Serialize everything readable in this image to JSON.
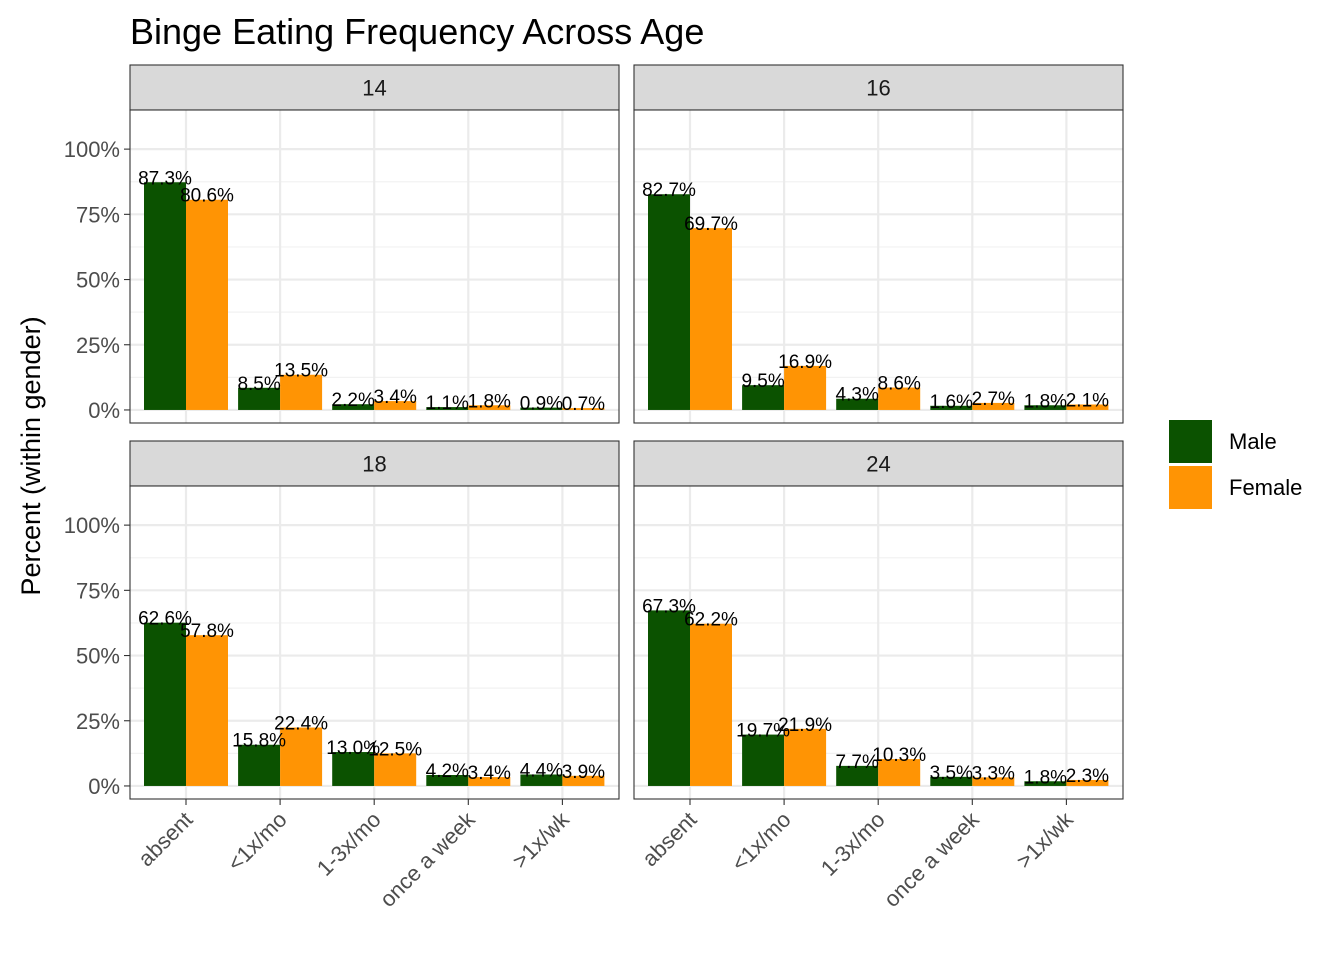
{
  "chart_data": {
    "type": "bar",
    "title": "Binge Eating Frequency Across Age",
    "xlabel": "",
    "ylabel": "Percent (within gender)",
    "ylim": [
      -0.05,
      1.15
    ],
    "y_ticks": [
      "0%",
      "25%",
      "50%",
      "75%",
      "100%"
    ],
    "y_tick_values": [
      0,
      0.25,
      0.5,
      0.75,
      1.0
    ],
    "categories": [
      "absent",
      "<1x/mo",
      "1-3x/mo",
      "once a week",
      ">1x/wk"
    ],
    "legend_position": "right",
    "grid": true,
    "series_meta": [
      {
        "name": "Male",
        "color": "#0B5200"
      },
      {
        "name": "Female",
        "color": "#FF9404"
      }
    ],
    "panels": [
      {
        "facet": "14",
        "series": [
          {
            "name": "Male",
            "values": [
              0.873,
              0.085,
              0.022,
              0.011,
              0.009
            ],
            "labels": [
              "87.3%",
              "8.5%",
              "2.2%",
              "1.1%",
              "0.9%"
            ]
          },
          {
            "name": "Female",
            "values": [
              0.806,
              0.135,
              0.034,
              0.018,
              0.007
            ],
            "labels": [
              "80.6%",
              "13.5%",
              "3.4%",
              "1.8%",
              "0.7%"
            ]
          }
        ]
      },
      {
        "facet": "16",
        "series": [
          {
            "name": "Male",
            "values": [
              0.827,
              0.095,
              0.043,
              0.016,
              0.018
            ],
            "labels": [
              "82.7%",
              "9.5%",
              "4.3%",
              "1.6%",
              "1.8%"
            ]
          },
          {
            "name": "Female",
            "values": [
              0.697,
              0.169,
              0.086,
              0.027,
              0.021
            ],
            "labels": [
              "69.7%",
              "16.9%",
              "8.6%",
              "2.7%",
              "2.1%"
            ]
          }
        ]
      },
      {
        "facet": "18",
        "series": [
          {
            "name": "Male",
            "values": [
              0.626,
              0.158,
              0.13,
              0.042,
              0.044
            ],
            "labels": [
              "62.6%",
              "15.8%",
              "13.0%",
              "4.2%",
              "4.4%"
            ]
          },
          {
            "name": "Female",
            "values": [
              0.578,
              0.224,
              0.125,
              0.034,
              0.039
            ],
            "labels": [
              "57.8%",
              "22.4%",
              "12.5%",
              "3.4%",
              "3.9%"
            ]
          }
        ]
      },
      {
        "facet": "24",
        "series": [
          {
            "name": "Male",
            "values": [
              0.673,
              0.197,
              0.077,
              0.035,
              0.018
            ],
            "labels": [
              "67.3%",
              "19.7%",
              "7.7%",
              "3.5%",
              "1.8%"
            ]
          },
          {
            "name": "Female",
            "values": [
              0.622,
              0.219,
              0.103,
              0.033,
              0.023
            ],
            "labels": [
              "62.2%",
              "21.9%",
              "10.3%",
              "3.3%",
              "2.3%"
            ]
          }
        ]
      }
    ]
  }
}
